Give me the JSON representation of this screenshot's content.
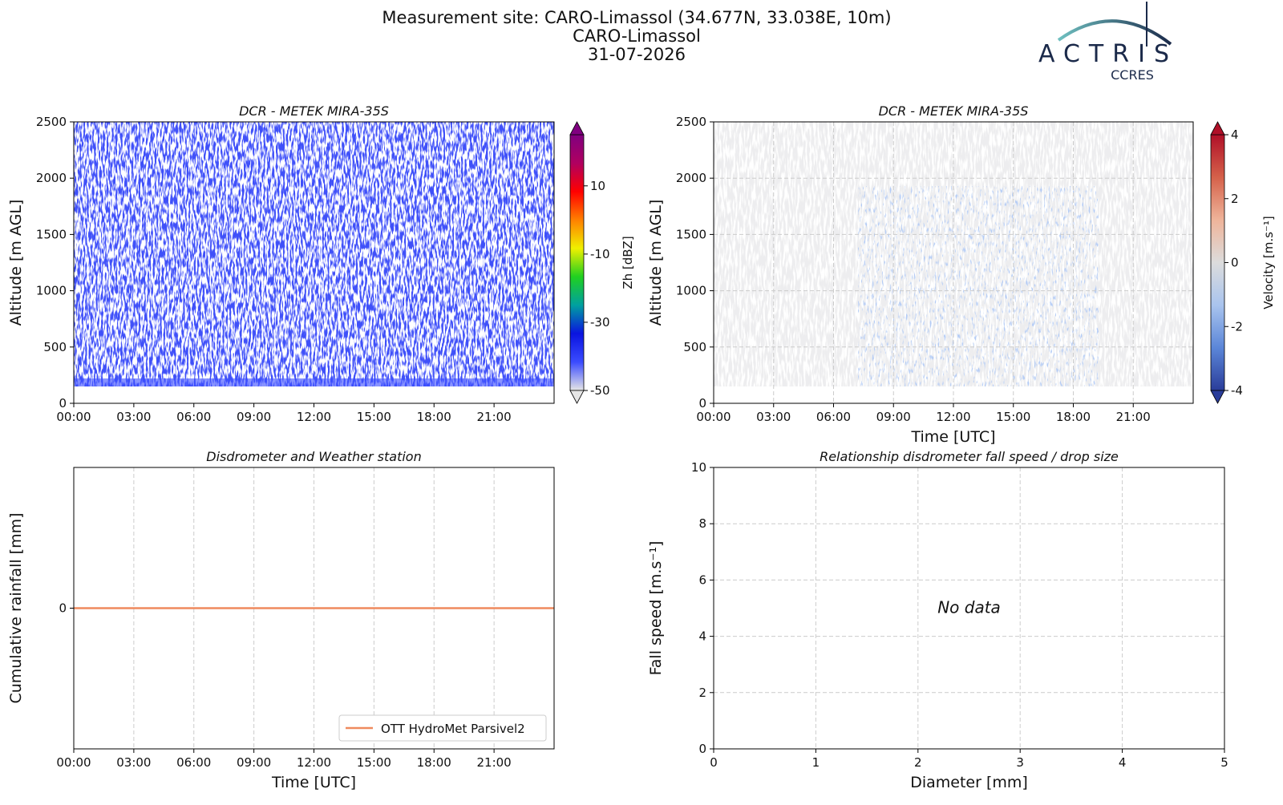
{
  "header": {
    "title_lines": [
      "Measurement site: CARO-Limassol (34.677N, 33.038E, 10m)",
      "CARO-Limassol",
      "31-07-2026"
    ],
    "logo": "ACTRIS",
    "logo_sub": "CCRES"
  },
  "chart_data": [
    {
      "type": "heatmap",
      "title": "DCR - METEK MIRA-35S",
      "y_label": "Altitude [m AGL]",
      "xlim": [
        0,
        24
      ],
      "xticks": [
        {
          "value": 0,
          "label": "00:00"
        },
        {
          "value": 3,
          "label": "03:00"
        },
        {
          "value": 6,
          "label": "06:00"
        },
        {
          "value": 9,
          "label": "09:00"
        },
        {
          "value": 12,
          "label": "12:00"
        },
        {
          "value": 15,
          "label": "15:00"
        },
        {
          "value": 18,
          "label": "18:00"
        },
        {
          "value": 21,
          "label": "21:00"
        }
      ],
      "ylim": [
        0,
        2500
      ],
      "yticks": [
        0,
        500,
        1000,
        1500,
        2000,
        2500
      ],
      "grid": false,
      "texture": "reflectivity",
      "colorbar": {
        "label": "Zh [dBZ]",
        "lim": [
          -50,
          25
        ],
        "ticks": [
          -50,
          -30,
          -10,
          10
        ],
        "colors": [
          "#e6e6e6",
          "#3b4cff",
          "#0a14e0",
          "#00a0a0",
          "#20d020",
          "#f0f000",
          "#ff8000",
          "#ff0000",
          "#b00060",
          "#800080"
        ]
      }
    },
    {
      "type": "heatmap",
      "title": "DCR - METEK MIRA-35S",
      "y_label": "Altitude [m AGL]",
      "x_label": "Time [UTC]",
      "xlim": [
        0,
        24
      ],
      "xticks": [
        {
          "value": 0,
          "label": "00:00"
        },
        {
          "value": 3,
          "label": "03:00"
        },
        {
          "value": 6,
          "label": "06:00"
        },
        {
          "value": 9,
          "label": "09:00"
        },
        {
          "value": 12,
          "label": "12:00"
        },
        {
          "value": 15,
          "label": "15:00"
        },
        {
          "value": 18,
          "label": "18:00"
        },
        {
          "value": 21,
          "label": "21:00"
        }
      ],
      "ylim": [
        0,
        2500
      ],
      "yticks": [
        0,
        500,
        1000,
        1500,
        2000,
        2500
      ],
      "grid": true,
      "texture": "velocity",
      "colorbar": {
        "label": "Velocity [m.s⁻¹]",
        "lim": [
          -4,
          4
        ],
        "ticks": [
          -4,
          -2,
          0,
          2,
          4
        ],
        "colors": [
          "#2a3d9a",
          "#5b86d8",
          "#a9c4ee",
          "#dcdcdc",
          "#efb49a",
          "#d5614a",
          "#b01028"
        ]
      }
    },
    {
      "type": "line",
      "title": "Disdrometer and Weather station",
      "y_label": "Cumulative rainfall [mm]",
      "x_label": "Time [UTC]",
      "xlim": [
        0,
        24
      ],
      "xticks": [
        {
          "value": 0,
          "label": "00:00"
        },
        {
          "value": 3,
          "label": "03:00"
        },
        {
          "value": 6,
          "label": "06:00"
        },
        {
          "value": 9,
          "label": "09:00"
        },
        {
          "value": 12,
          "label": "12:00"
        },
        {
          "value": 15,
          "label": "15:00"
        },
        {
          "value": 18,
          "label": "18:00"
        },
        {
          "value": 21,
          "label": "21:00"
        }
      ],
      "ylim": [
        -1,
        1
      ],
      "yticks": [
        0
      ],
      "grid": true,
      "legend": "lower right",
      "x": [
        0,
        24
      ],
      "series": [
        {
          "name": "OTT HydroMet Parsivel2",
          "color": "#ef8a5e",
          "values": [
            0,
            0
          ]
        }
      ]
    },
    {
      "type": "scatter",
      "title": "Relationship disdrometer fall speed / drop size",
      "y_label": "Fall speed [m.s⁻¹]",
      "x_label": "Diameter [mm]",
      "xlim": [
        0,
        5
      ],
      "xticks": [
        0,
        1,
        2,
        3,
        4,
        5
      ],
      "ylim": [
        0,
        10
      ],
      "yticks": [
        0,
        2,
        4,
        6,
        8,
        10
      ],
      "grid": true,
      "annotation": "No data"
    }
  ]
}
